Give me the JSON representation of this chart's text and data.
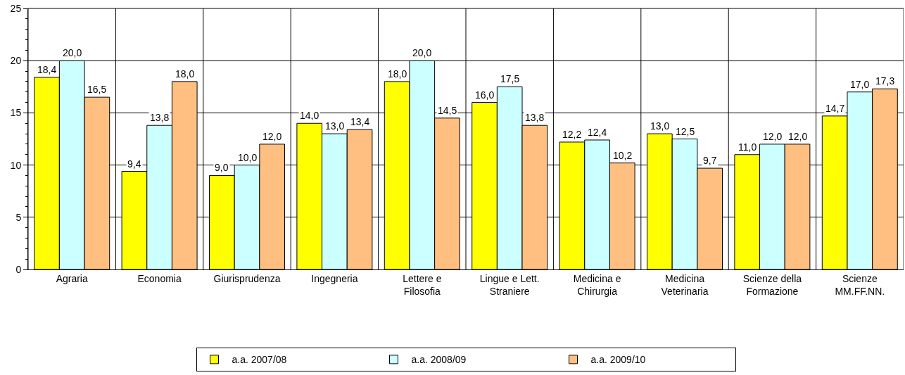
{
  "chart_data": {
    "type": "bar",
    "categories": [
      "Agraria",
      "Economia",
      "Giurisprudenza",
      "Ingegneria",
      "Lettere e Filosofia",
      "Lingue e Lett. Straniere",
      "Medicina e Chirurgia",
      "Medicina Veterinaria",
      "Scienze della Formazione",
      "Scienze MM.FF.NN."
    ],
    "series": [
      {
        "name": "a.a. 2007/08",
        "color": "#ffff00",
        "values": [
          18.4,
          9.4,
          9.0,
          14.0,
          18.0,
          16.0,
          12.2,
          13.0,
          11.0,
          14.7
        ],
        "value_labels": [
          "18,4",
          "9,4",
          "9,0",
          "14,0",
          "18,0",
          "16,0",
          "12,2",
          "13,0",
          "11,0",
          "14,7"
        ]
      },
      {
        "name": "a.a. 2008/09",
        "color": "#ccffff",
        "values": [
          20.0,
          13.8,
          10.0,
          13.0,
          20.0,
          17.5,
          12.4,
          12.5,
          12.0,
          17.0
        ],
        "value_labels": [
          "20,0",
          "13,8",
          "10,0",
          "13,0",
          "20,0",
          "17,5",
          "12,4",
          "12,5",
          "12,0",
          "17,0"
        ]
      },
      {
        "name": "a.a. 2009/10",
        "color": "#ffbf80",
        "values": [
          16.5,
          18.0,
          12.0,
          13.4,
          14.5,
          13.8,
          10.2,
          9.7,
          12.0,
          17.3
        ],
        "value_labels": [
          "16,5",
          "18,0",
          "12,0",
          "13,4",
          "14,5",
          "13,8",
          "10,2",
          "9,7",
          "12,0",
          "17,3"
        ]
      }
    ],
    "ylim": [
      0,
      25
    ],
    "yticks": [
      0,
      5,
      10,
      15,
      20,
      25
    ],
    "grid": true,
    "legend": "bottom"
  }
}
